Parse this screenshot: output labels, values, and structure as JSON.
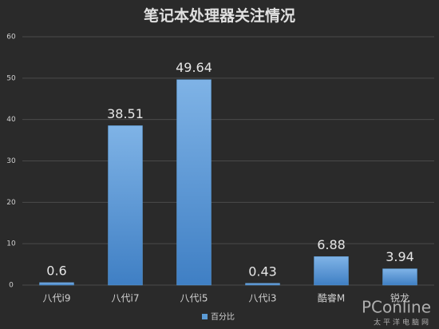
{
  "chart_data": {
    "type": "bar",
    "title": "笔记本处理器关注情况",
    "categories": [
      "八代i9",
      "八代i7",
      "八代i5",
      "八代i3",
      "酷睿M",
      "锐龙"
    ],
    "series": [
      {
        "name": "百分比",
        "color": "#5b9bd5",
        "values": [
          0.6,
          38.51,
          49.64,
          0.43,
          6.88,
          3.94
        ]
      }
    ],
    "ylim": [
      0,
      60
    ],
    "yticks": [
      0,
      10,
      20,
      30,
      40,
      50,
      60
    ],
    "grid": true,
    "legend": "bottom",
    "watermark": "PConline",
    "watermark_subtitle": "太平洋电脑网"
  }
}
